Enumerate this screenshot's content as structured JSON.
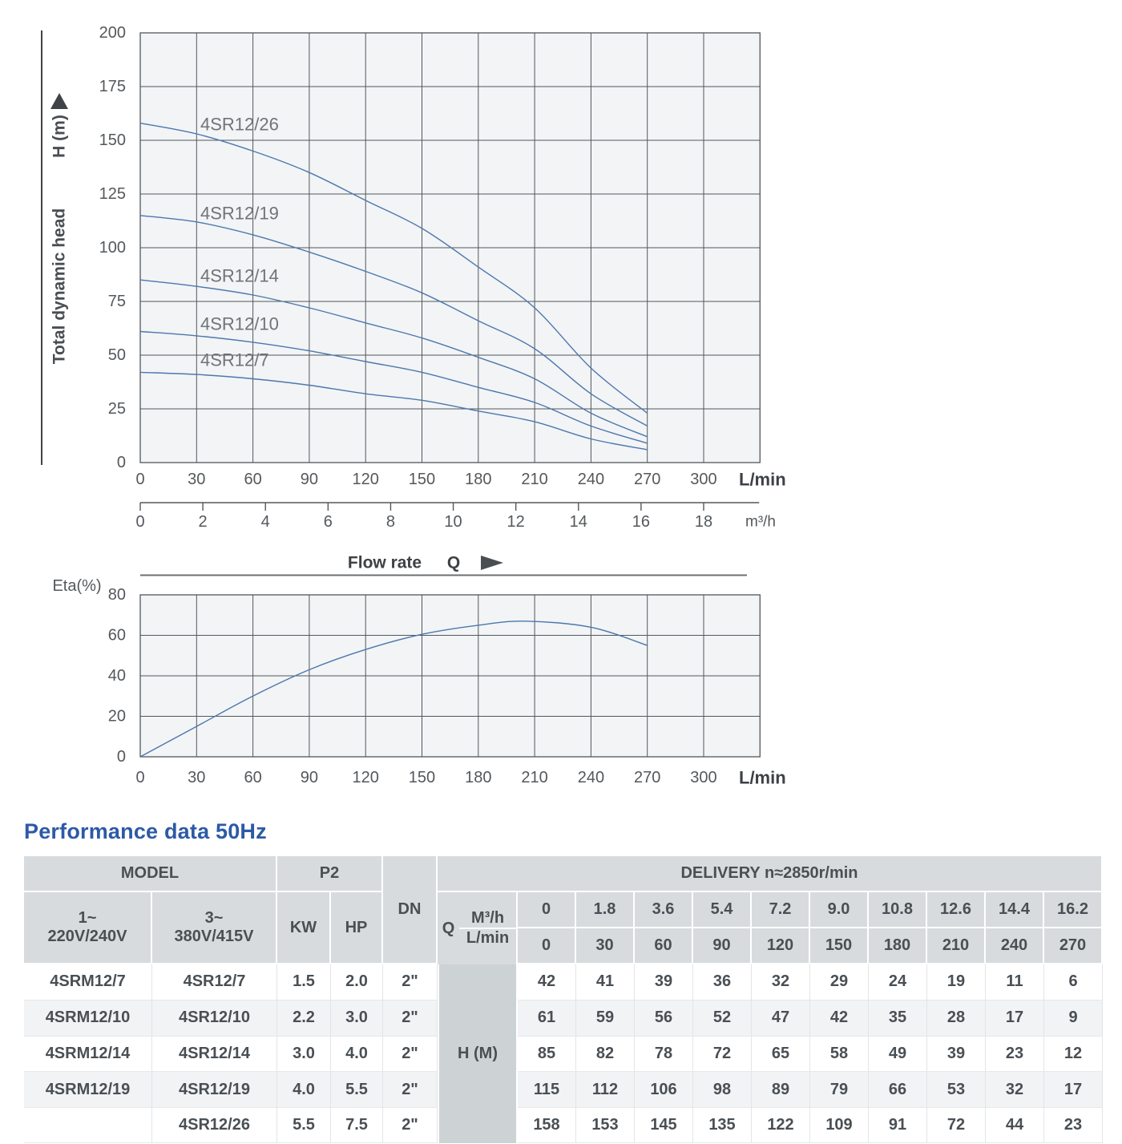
{
  "title": "Performance data 50Hz",
  "colors": {
    "title_blue": "#2c5aa6",
    "curve_blue": "#4d77ad",
    "grid": "#53575b",
    "plot_bg": "#f2f4f6",
    "tick_text": "#54585c",
    "bold_text": "#3d4145",
    "curve_label": "#6f7479",
    "table_text": "#4a4f54",
    "header_bg": "#d8dbdd",
    "hm_bg": "#cdd2d4",
    "row_alt": "#f1f3f5"
  },
  "chart_data": [
    {
      "id": "head-flow-chart",
      "type": "line",
      "title": "",
      "ylabel": "H (m)",
      "ylabel2": "Total dynamic head",
      "xlabel": "Flow rate",
      "xlabel_symbol": "Q",
      "x_unit_primary": "L/min",
      "x_unit_secondary": "m³/h",
      "xlim": [
        0,
        330
      ],
      "ylim": [
        0,
        200
      ],
      "grid": true,
      "x_ticks_lmin": [
        0,
        30,
        60,
        90,
        120,
        150,
        180,
        210,
        240,
        270,
        300
      ],
      "x_ticks_m3h": [
        0,
        2,
        4,
        6,
        8,
        10,
        12,
        14,
        16,
        18
      ],
      "y_ticks": [
        0,
        25,
        50,
        75,
        100,
        125,
        150,
        175,
        200
      ],
      "x": [
        0,
        30,
        60,
        90,
        120,
        150,
        180,
        210,
        240,
        270
      ],
      "series": [
        {
          "name": "4SR12/26",
          "values": [
            158,
            153,
            145,
            135,
            122,
            109,
            91,
            72,
            44,
            23
          ]
        },
        {
          "name": "4SR12/19",
          "values": [
            115,
            112,
            106,
            98,
            89,
            79,
            66,
            53,
            32,
            17
          ]
        },
        {
          "name": "4SR12/14",
          "values": [
            85,
            82,
            78,
            72,
            65,
            58,
            49,
            39,
            23,
            12
          ]
        },
        {
          "name": "4SR12/10",
          "values": [
            61,
            59,
            56,
            52,
            47,
            42,
            35,
            28,
            17,
            9
          ]
        },
        {
          "name": "4SR12/7",
          "values": [
            42,
            41,
            39,
            36,
            32,
            29,
            24,
            19,
            11,
            6
          ]
        }
      ]
    },
    {
      "id": "efficiency-chart",
      "type": "line",
      "ylabel": "Eta(%)",
      "x_unit": "L/min",
      "xlim": [
        0,
        330
      ],
      "ylim": [
        0,
        80
      ],
      "grid": true,
      "x_ticks": [
        0,
        30,
        60,
        90,
        120,
        150,
        180,
        210,
        240,
        270,
        300
      ],
      "y_ticks": [
        0,
        20,
        40,
        60,
        80
      ],
      "points": [
        [
          0,
          0
        ],
        [
          30,
          15
        ],
        [
          60,
          30
        ],
        [
          90,
          43
        ],
        [
          120,
          53
        ],
        [
          150,
          60.5
        ],
        [
          180,
          65
        ],
        [
          205,
          67
        ],
        [
          240,
          64
        ],
        [
          270,
          55
        ]
      ]
    }
  ],
  "table": {
    "header": {
      "model": "MODEL",
      "p2": "P2",
      "dn": "DN",
      "delivery": "DELIVERY  n≈2850r/min",
      "phase1_line1": "1~",
      "phase1_line2": "220V/240V",
      "phase3_line1": "3~",
      "phase3_line2": "380V/415V",
      "kw": "KW",
      "hp": "HP",
      "q": "Q",
      "q_m3h": "M³/h",
      "q_lmin": "L/min",
      "flow_m3h": [
        "0",
        "1.8",
        "3.6",
        "5.4",
        "7.2",
        "9.0",
        "10.8",
        "12.6",
        "14.4",
        "16.2"
      ],
      "flow_lmin": [
        "0",
        "30",
        "60",
        "90",
        "120",
        "150",
        "180",
        "210",
        "240",
        "270"
      ]
    },
    "h_unit_label": "H (M)",
    "rows": [
      {
        "model_1ph": "4SRM12/7",
        "model_3ph": "4SR12/7",
        "kw": "1.5",
        "hp": "2.0",
        "dn": "2\"",
        "heads": [
          "42",
          "41",
          "39",
          "36",
          "32",
          "29",
          "24",
          "19",
          "11",
          "6"
        ]
      },
      {
        "model_1ph": "4SRM12/10",
        "model_3ph": "4SR12/10",
        "kw": "2.2",
        "hp": "3.0",
        "dn": "2\"",
        "heads": [
          "61",
          "59",
          "56",
          "52",
          "47",
          "42",
          "35",
          "28",
          "17",
          "9"
        ]
      },
      {
        "model_1ph": "4SRM12/14",
        "model_3ph": "4SR12/14",
        "kw": "3.0",
        "hp": "4.0",
        "dn": "2\"",
        "heads": [
          "85",
          "82",
          "78",
          "72",
          "65",
          "58",
          "49",
          "39",
          "23",
          "12"
        ]
      },
      {
        "model_1ph": "4SRM12/19",
        "model_3ph": "4SR12/19",
        "kw": "4.0",
        "hp": "5.5",
        "dn": "2\"",
        "heads": [
          "115",
          "112",
          "106",
          "98",
          "89",
          "79",
          "66",
          "53",
          "32",
          "17"
        ]
      },
      {
        "model_1ph": "",
        "model_3ph": "4SR12/26",
        "kw": "5.5",
        "hp": "7.5",
        "dn": "2\"",
        "heads": [
          "158",
          "153",
          "145",
          "135",
          "122",
          "109",
          "91",
          "72",
          "44",
          "23"
        ]
      }
    ]
  }
}
